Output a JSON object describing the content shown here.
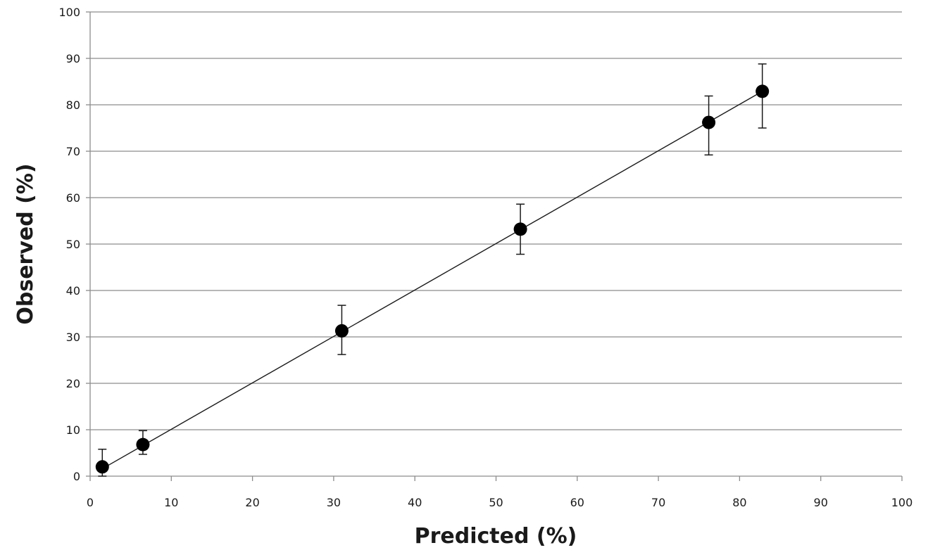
{
  "chart_data": {
    "type": "scatter",
    "xlabel": "Predicted (%)",
    "ylabel": "Observed (%)",
    "xlim": [
      0,
      100
    ],
    "ylim": [
      0,
      100
    ],
    "x_ticks": [
      0,
      10,
      20,
      30,
      40,
      50,
      60,
      70,
      80,
      90,
      100
    ],
    "y_ticks": [
      0,
      10,
      20,
      30,
      40,
      50,
      60,
      70,
      80,
      90,
      100
    ],
    "grid": "horizontal",
    "legend": "none",
    "points": [
      {
        "x": 1.5,
        "y": 2.0,
        "err_low": 0.0,
        "err_high": 5.8
      },
      {
        "x": 6.5,
        "y": 6.8,
        "err_low": 4.7,
        "err_high": 9.8
      },
      {
        "x": 31.0,
        "y": 31.3,
        "err_low": 26.2,
        "err_high": 36.8
      },
      {
        "x": 53.0,
        "y": 53.2,
        "err_low": 47.8,
        "err_high": 58.6
      },
      {
        "x": 76.2,
        "y": 76.2,
        "err_low": 69.2,
        "err_high": 81.9
      },
      {
        "x": 82.8,
        "y": 82.9,
        "err_low": 75.0,
        "err_high": 88.8
      }
    ],
    "fit_line": {
      "x": [
        1.5,
        82.8
      ],
      "y": [
        1.6,
        82.9
      ]
    }
  }
}
